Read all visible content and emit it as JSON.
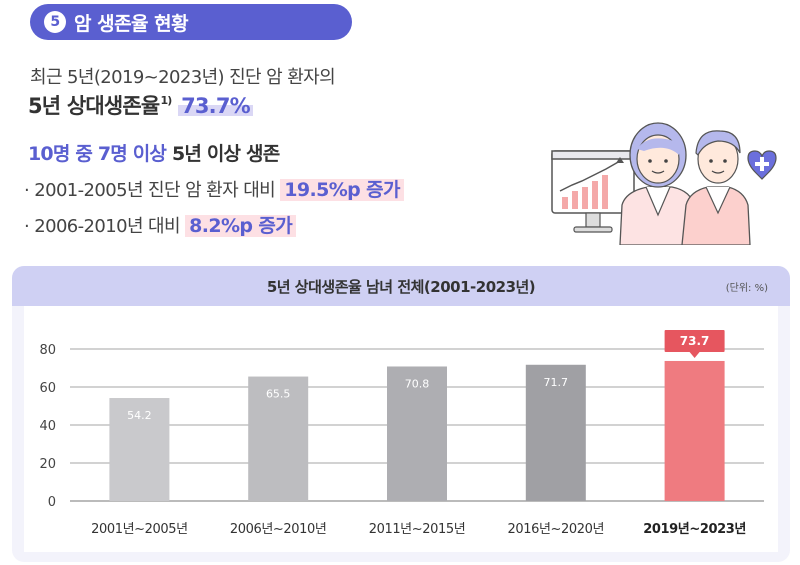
{
  "section": {
    "number": "5",
    "title": "암 생존율 현황"
  },
  "summary": {
    "line1": "최근 5년(2019~2023년) 진단 암 환자의",
    "line2_prefix": "5년 상대생존율",
    "line2_sup": "1)",
    "line2_value": "73.7%",
    "line3_blue": "10명 중 7명 이상",
    "line3_dark": "5년 이상 생존",
    "bullet1_text": "· 2001-2005년 진단 암 환자 대비",
    "bullet1_value": "19.5%p 증가",
    "bullet2_text": "· 2006-2010년 대비",
    "bullet2_value": "8.2%p 증가"
  },
  "chart": {
    "title": "5년 상대생존율 남녀 전체(2001-2023년)",
    "unit": "(단위: %)"
  },
  "colors": {
    "accent": "#5a5fd0",
    "highlight_bar": "#ef7b80",
    "callout": "#e6565f"
  },
  "chart_data": {
    "type": "bar",
    "categories": [
      "2001년~2005년",
      "2006년~2010년",
      "2011년~2015년",
      "2016년~2020년",
      "2019년~2023년"
    ],
    "values": [
      54.2,
      65.5,
      70.8,
      71.7,
      73.7
    ],
    "value_labels": [
      "54.2",
      "65.5",
      "70.8",
      "71.7",
      "73.7"
    ],
    "bar_colors": [
      "#c9c9cc",
      "#bdbdc0",
      "#aeaeb2",
      "#a0a0a4",
      "#ef7b80"
    ],
    "highlight_index": 4,
    "title": "5년 상대생존율 남녀 전체(2001-2023년)",
    "xlabel": "",
    "ylabel": "",
    "yticks": [
      0,
      20,
      40,
      60,
      80
    ],
    "ylim": [
      0,
      80
    ],
    "grid": true
  }
}
